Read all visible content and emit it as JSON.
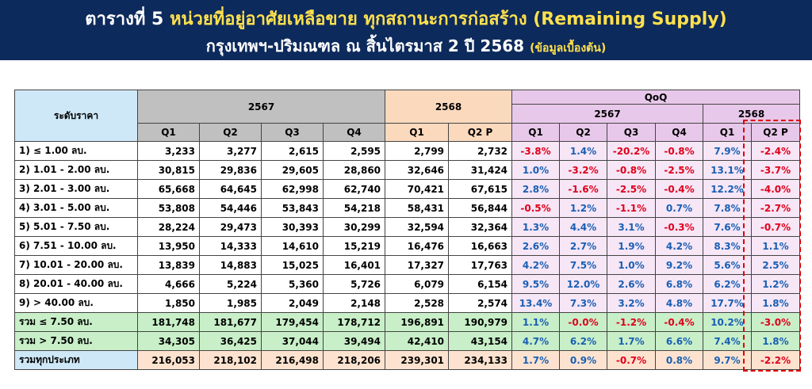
{
  "header": {
    "title": {
      "prefix": "ตารางที่ 5",
      "main": "หน่วยที่อยู่อาศัยเหลือขาย ทุกสถานะการก่อสร้าง (Remaining Supply)"
    },
    "subtitle": {
      "main": "กรุงเทพฯ-ปริมณฑล ณ สิ้นไตรมาส 2 ปี 2568",
      "note": "(ข้อมูลเบื้องต้น)"
    }
  },
  "table": {
    "label_header": "ระดับราคา",
    "group_2567": "2567",
    "group_2568": "2568",
    "qoq": "QoQ",
    "qoq_2567": "2567",
    "qoq_2568": "2568",
    "quarters": [
      "Q1",
      "Q2",
      "Q3",
      "Q4",
      "Q1",
      "Q2 P"
    ],
    "qoq_quarters": [
      "Q1",
      "Q2",
      "Q3",
      "Q4",
      "Q1",
      "Q2 P"
    ],
    "rows": [
      {
        "label": "1) ≤ 1.00 ลบ.",
        "values": [
          "3,233",
          "3,277",
          "2,615",
          "2,595",
          "2,799",
          "2,732"
        ],
        "qoq": [
          "-3.8%",
          "1.4%",
          "-20.2%",
          "-0.8%",
          "7.9%",
          "-2.4%"
        ]
      },
      {
        "label": "2) 1.01 - 2.00 ลบ.",
        "values": [
          "30,815",
          "29,836",
          "29,605",
          "28,860",
          "32,646",
          "31,424"
        ],
        "qoq": [
          "1.0%",
          "-3.2%",
          "-0.8%",
          "-2.5%",
          "13.1%",
          "-3.7%"
        ]
      },
      {
        "label": "3) 2.01 - 3.00 ลบ.",
        "values": [
          "65,668",
          "64,645",
          "62,998",
          "62,740",
          "70,421",
          "67,615"
        ],
        "qoq": [
          "2.8%",
          "-1.6%",
          "-2.5%",
          "-0.4%",
          "12.2%",
          "-4.0%"
        ]
      },
      {
        "label": "4) 3.01 - 5.00 ลบ.",
        "values": [
          "53,808",
          "54,446",
          "53,843",
          "54,218",
          "58,431",
          "56,844"
        ],
        "qoq": [
          "-0.5%",
          "1.2%",
          "-1.1%",
          "0.7%",
          "7.8%",
          "-2.7%"
        ]
      },
      {
        "label": "5) 5.01 - 7.50 ลบ.",
        "values": [
          "28,224",
          "29,473",
          "30,393",
          "30,299",
          "32,594",
          "32,364"
        ],
        "qoq": [
          "1.3%",
          "4.4%",
          "3.1%",
          "-0.3%",
          "7.6%",
          "-0.7%"
        ]
      },
      {
        "label": "6) 7.51 - 10.00 ลบ.",
        "values": [
          "13,950",
          "14,333",
          "14,610",
          "15,219",
          "16,476",
          "16,663"
        ],
        "qoq": [
          "2.6%",
          "2.7%",
          "1.9%",
          "4.2%",
          "8.3%",
          "1.1%"
        ]
      },
      {
        "label": "7) 10.01 - 20.00 ลบ.",
        "values": [
          "13,839",
          "14,883",
          "15,025",
          "16,401",
          "17,327",
          "17,763"
        ],
        "qoq": [
          "4.2%",
          "7.5%",
          "1.0%",
          "9.2%",
          "5.6%",
          "2.5%"
        ]
      },
      {
        "label": "8) 20.01 - 40.00 ลบ.",
        "values": [
          "4,666",
          "5,224",
          "5,360",
          "5,726",
          "6,079",
          "6,154"
        ],
        "qoq": [
          "9.5%",
          "12.0%",
          "2.6%",
          "6.8%",
          "6.2%",
          "1.2%"
        ]
      },
      {
        "label": "9) > 40.00 ลบ.",
        "values": [
          "1,850",
          "1,985",
          "2,049",
          "2,148",
          "2,528",
          "2,574"
        ],
        "qoq": [
          "13.4%",
          "7.3%",
          "3.2%",
          "4.8%",
          "17.7%",
          "1.8%"
        ]
      },
      {
        "label": "รวม ≤ 7.50 ลบ.",
        "values": [
          "181,748",
          "181,677",
          "179,454",
          "178,712",
          "196,891",
          "190,979"
        ],
        "qoq": [
          "1.1%",
          "-0.0%",
          "-1.2%",
          "-0.4%",
          "10.2%",
          "-3.0%"
        ]
      },
      {
        "label": "รวม > 7.50 ลบ.",
        "values": [
          "34,305",
          "36,425",
          "37,044",
          "39,494",
          "42,410",
          "43,154"
        ],
        "qoq": [
          "4.7%",
          "6.2%",
          "1.7%",
          "6.6%",
          "7.4%",
          "1.8%"
        ]
      },
      {
        "label": "รวมทุกประเภท",
        "values": [
          "216,053",
          "218,102",
          "216,498",
          "218,206",
          "239,301",
          "234,133"
        ],
        "qoq": [
          "1.7%",
          "0.9%",
          "-0.7%",
          "0.8%",
          "9.7%",
          "-2.2%"
        ]
      }
    ]
  }
}
